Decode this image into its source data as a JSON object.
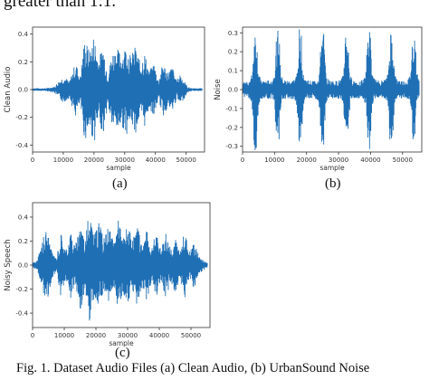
{
  "top_text": "greater than 1:1.",
  "caption": "Fig. 1.   Dataset Audio Files (a) Clean Audio, (b) UrbanSound Noise",
  "waveform_color": "#1f6fb5",
  "chart_data": [
    {
      "type": "line",
      "sublabel": "(a)",
      "ylabel": "Clean Audio",
      "xlabel": "sample",
      "xlim": [
        0,
        56000
      ],
      "ylim": [
        -0.45,
        0.45
      ],
      "x_ticks": [
        0,
        10000,
        20000,
        30000,
        40000,
        50000
      ],
      "y_ticks": [
        -0.4,
        -0.2,
        0.0,
        0.2,
        0.4
      ],
      "y_tick_labels": [
        "-0.4",
        "-0.2",
        "0.0",
        "0.2",
        "0.4"
      ],
      "envelope": {
        "x": [
          0,
          4000,
          7000,
          10000,
          12000,
          14000,
          15500,
          17000,
          18500,
          20000,
          21500,
          23000,
          24500,
          26000,
          27500,
          29000,
          30500,
          32000,
          33500,
          35000,
          36500,
          38000,
          39500,
          41000,
          42500,
          44000,
          45500,
          47000,
          48000,
          49000,
          50500,
          52000,
          54000,
          56000
        ],
        "y": [
          0.01,
          0.01,
          0.02,
          0.1,
          0.06,
          0.2,
          0.1,
          0.38,
          0.28,
          0.4,
          0.22,
          0.33,
          0.12,
          0.28,
          0.3,
          0.26,
          0.33,
          0.24,
          0.32,
          0.2,
          0.27,
          0.13,
          0.2,
          0.07,
          0.2,
          0.13,
          0.17,
          0.06,
          0.12,
          0.08,
          0.02,
          0.01,
          0.01,
          0.01
        ]
      }
    },
    {
      "type": "line",
      "sublabel": "(b)",
      "ylabel": "Noise",
      "xlabel": "sample",
      "xlim": [
        0,
        56000
      ],
      "ylim": [
        -0.33,
        0.33
      ],
      "x_ticks": [
        0,
        10000,
        20000,
        30000,
        40000,
        50000
      ],
      "y_ticks": [
        -0.3,
        -0.2,
        -0.1,
        0.0,
        0.1,
        0.2,
        0.3
      ],
      "y_tick_labels": [
        "-0.3",
        "-0.2",
        "-0.1",
        "0.0",
        "0.1",
        "0.2",
        "0.3"
      ],
      "bursts": {
        "centers": [
          4000,
          11000,
          18000,
          25000,
          32500,
          39500,
          46500,
          53500
        ],
        "peak": 0.3,
        "floor": 0.03
      }
    },
    {
      "type": "line",
      "sublabel": "(c)",
      "ylabel": "Noisy Speech",
      "xlabel": "sample",
      "xlim": [
        0,
        56000
      ],
      "ylim": [
        -0.52,
        0.52
      ],
      "x_ticks": [
        0,
        10000,
        20000,
        30000,
        40000,
        50000
      ],
      "y_ticks": [
        -0.4,
        -0.2,
        0.0,
        0.2,
        0.4
      ],
      "y_tick_labels": [
        "-0.4",
        "-0.2",
        "0.0",
        "0.2",
        "0.4"
      ],
      "envelope": {
        "x": [
          0,
          1500,
          3000,
          4500,
          6000,
          7500,
          9000,
          10500,
          12000,
          13500,
          15000,
          16500,
          18000,
          19500,
          21000,
          22500,
          24000,
          25500,
          27000,
          28500,
          30000,
          31500,
          33000,
          34500,
          36000,
          37500,
          39000,
          40500,
          42000,
          43500,
          45000,
          46500,
          48000,
          49500,
          51000,
          52500,
          54000,
          55500
        ],
        "y": [
          0.02,
          0.04,
          0.2,
          0.33,
          0.12,
          0.06,
          0.28,
          0.12,
          0.3,
          0.15,
          0.42,
          0.2,
          0.47,
          0.26,
          0.36,
          0.22,
          0.34,
          0.2,
          0.38,
          0.22,
          0.36,
          0.2,
          0.34,
          0.18,
          0.3,
          0.15,
          0.28,
          0.12,
          0.3,
          0.14,
          0.24,
          0.1,
          0.3,
          0.12,
          0.2,
          0.08,
          0.04,
          0.02
        ]
      }
    }
  ]
}
